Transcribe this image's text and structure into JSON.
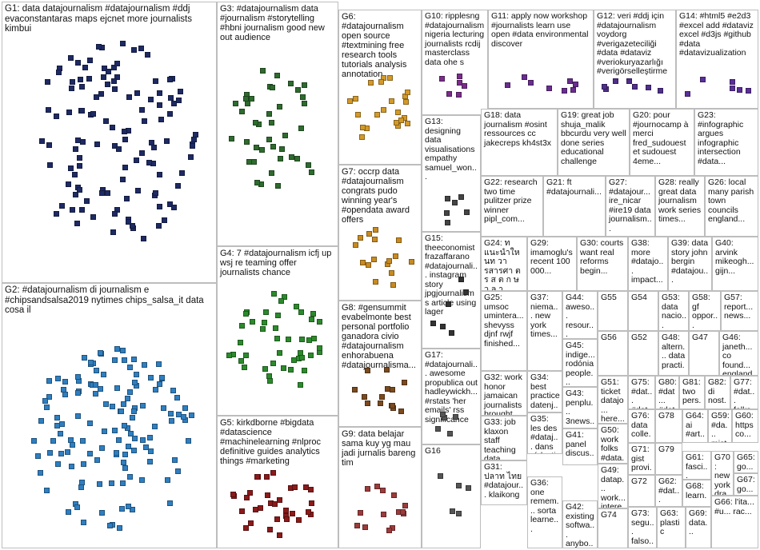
{
  "title": "",
  "colors": {
    "border": "#bdbdbd",
    "g1": "#1e2a63",
    "g2": "#2f7fc0",
    "g3": "#2e6b2e",
    "g4": "#2c8a2c",
    "g5": "#8b1a1a",
    "g6": "#d39a2a",
    "g7": "#c98b1f",
    "g8": "#7a4a1e",
    "g9": "#9c3b3b",
    "g10": "#7a2d8a",
    "edge": "#b8b8b8",
    "edge_red": "#e06060"
  },
  "groups": [
    {
      "id": "G1",
      "label": "G1: data datajournalism #datajournalism #ddj evaconstantaras maps ejcnet more journalists kimbui"
    },
    {
      "id": "G2",
      "label": "G2: #datajournalism di journalism e #chipsandsalsa2019 nytimes chips_salsa_it data cosa il"
    },
    {
      "id": "G3",
      "label": "G3: #datajournalism data #journalism #storytelling #hbni journalism good new out audience"
    },
    {
      "id": "G4",
      "label": "G4: 7 #datajournalism icfj up wsj re teaming offer journalists chance"
    },
    {
      "id": "G5",
      "label": "G5: kirkdborne #bigdata #datascience #machinelearning #nlproc definitive guides analytics things #marketing"
    },
    {
      "id": "G6",
      "label": "G6: #datajournalism open source #textmining free research tools tutorials analysis annotation"
    },
    {
      "id": "G7",
      "label": "G7: occrp data #datajournalism congrats pudo winning year's #opendata award offers"
    },
    {
      "id": "G8",
      "label": "G8: #gensummit evabelmonte best personal portfolio ganadora civio #datajournalism enhorabuena #datajournalisma..."
    },
    {
      "id": "G9",
      "label": "G9: data belajar sama kuy yg mau jadi jurnalis bareng tim"
    },
    {
      "id": "G10",
      "label": "G10: ripplesng #datajournalism nigeria lecturing journalists rcdij masterclass data ohe s"
    },
    {
      "id": "G11",
      "label": "G11: apply now workshop #journalists learn use open #data environmental discover"
    },
    {
      "id": "G12",
      "label": "G12: veri #ddj için #datajournalism voydorg #verigazeteciliği #data #dataviz #veriokuryazarlığı #verigörselleştirme"
    },
    {
      "id": "G14",
      "label": "G14: #html5 #e2d3 #excel add #dataviz excel #d3js #github #data #datavizualization"
    },
    {
      "id": "G13",
      "label": "G13: designing data visualisations empathy samuel_won..."
    },
    {
      "id": "G18",
      "label": "G18: data journalism #osint ressources cc jakecreps kh4st3x"
    },
    {
      "id": "G19",
      "label": "G19: great job shuja_malik bbcurdu very well done series educational challenge"
    },
    {
      "id": "G20",
      "label": "G20: pour #journocamp à merci fred_sudouest et sudouest 4eme..."
    },
    {
      "id": "G23",
      "label": "G23: #infographic argues infographic intersection #data..."
    },
    {
      "id": "G22",
      "label": "G22: research two time pulitzer prize winner pipl_com..."
    },
    {
      "id": "G21",
      "label": "G21: ft #datajournali..."
    },
    {
      "id": "G27",
      "label": "G27: #datajour... ire_nicar #ire19 data journalism..."
    },
    {
      "id": "G28",
      "label": "G28: really great data journalism work series times..."
    },
    {
      "id": "G26",
      "label": "G26: local many parish town councils england..."
    },
    {
      "id": "G15",
      "label": "G15: theeconomist frazaffarano #datajournali... instagram story jpgjournalism s article using lager"
    },
    {
      "id": "G24",
      "label": "G24: ท แนะนำให นท วารสารศา ต ร ส ต ก ษ ว ล า..."
    },
    {
      "id": "G29",
      "label": "G29: imamoglu's recent 100 000..."
    },
    {
      "id": "G30",
      "label": "G30: courts want real reforms begin..."
    },
    {
      "id": "G38",
      "label": "G38: more #datajo... impact..."
    },
    {
      "id": "G39",
      "label": "G39: data story john bergin #datajou..."
    },
    {
      "id": "G40",
      "label": "G40: arvink mikeogh... gijn..."
    },
    {
      "id": "G25",
      "label": "G25: umsoc umintera... shevyss djnf rwjf finished..."
    },
    {
      "id": "G37",
      "label": "G37: niema... new york times..."
    },
    {
      "id": "G44",
      "label": "G44: aweso... resour... #dataj..."
    },
    {
      "id": "G55",
      "label": "G55"
    },
    {
      "id": "G54",
      "label": "G54"
    },
    {
      "id": "G53",
      "label": "G53: data nacio..."
    },
    {
      "id": "G58",
      "label": "G58: gf oppor..."
    },
    {
      "id": "G57",
      "label": "G57: report... news..."
    },
    {
      "id": "G17",
      "label": "G17: #datajournali... awesome propublica out hadleywickh... #rstats 'her emails' rss significance"
    },
    {
      "id": "G34",
      "label": "G34: best practice datenj... sind_12..."
    },
    {
      "id": "G45",
      "label": "G45: indige... rodónia people..."
    },
    {
      "id": "G56",
      "label": "G56"
    },
    {
      "id": "G52",
      "label": "G52"
    },
    {
      "id": "G48",
      "label": "G48: altern... data practi..."
    },
    {
      "id": "G47",
      "label": "G47"
    },
    {
      "id": "G46",
      "label": "G46: janeth... co found... england..."
    },
    {
      "id": "G32",
      "label": "G32: work honor jamaican journalists brought..."
    },
    {
      "id": "G43",
      "label": "G43: penplu... 3news... #dataj..."
    },
    {
      "id": "G51",
      "label": "G51: ticket datajo... here... #dataj..."
    },
    {
      "id": "G75",
      "label": "G75: #dat... #dat..."
    },
    {
      "id": "G80",
      "label": "G80: #dat... #dat..."
    },
    {
      "id": "G81",
      "label": "G81: two pers..."
    },
    {
      "id": "G82",
      "label": "G82: di nost..."
    },
    {
      "id": "G77",
      "label": "G77: #dat... folks..."
    },
    {
      "id": "G35",
      "label": "G35: les des #dataj... dans rédacti..."
    },
    {
      "id": "G41",
      "label": "G41: panel discus... journal..."
    },
    {
      "id": "G50",
      "label": "G50: work folks #data..."
    },
    {
      "id": "G76",
      "label": "G76: data colle..."
    },
    {
      "id": "G78",
      "label": "G78"
    },
    {
      "id": "G64",
      "label": "G64: ai #art..."
    },
    {
      "id": "G59",
      "label": "G59: #da... mist..."
    },
    {
      "id": "G60",
      "label": "G60: https co..."
    },
    {
      "id": "G33",
      "label": "G33: job klaxon staff teaching data..."
    },
    {
      "id": "G71",
      "label": "G71: gist provi..."
    },
    {
      "id": "G79",
      "label": "G79"
    },
    {
      "id": "G61",
      "label": "G61: fasci..."
    },
    {
      "id": "G70",
      "label": "G70: new york dra..."
    },
    {
      "id": "G65",
      "label": "G65: go..."
    },
    {
      "id": "G16",
      "label": "G16"
    },
    {
      "id": "G49",
      "label": "G49: datap... work... intere..."
    },
    {
      "id": "G72",
      "label": "G72"
    },
    {
      "id": "G62",
      "label": "G62: #dat..."
    },
    {
      "id": "G68",
      "label": "G68: learn..."
    },
    {
      "id": "G67",
      "label": "G67: go..."
    },
    {
      "id": "G31",
      "label": "G31: ปลาท ไทย #datajour... klaikong"
    },
    {
      "id": "G36",
      "label": "G36: one remem... sorta learne..."
    },
    {
      "id": "G42",
      "label": "G42: existing softwa... anybo..."
    },
    {
      "id": "G74",
      "label": "G74"
    },
    {
      "id": "G73",
      "label": "G73: segu... falso..."
    },
    {
      "id": "G63",
      "label": "G63: plastic"
    },
    {
      "id": "G69",
      "label": "G69: data..."
    },
    {
      "id": "G66",
      "label": "G66: l'ita... #u... rac..."
    }
  ]
}
